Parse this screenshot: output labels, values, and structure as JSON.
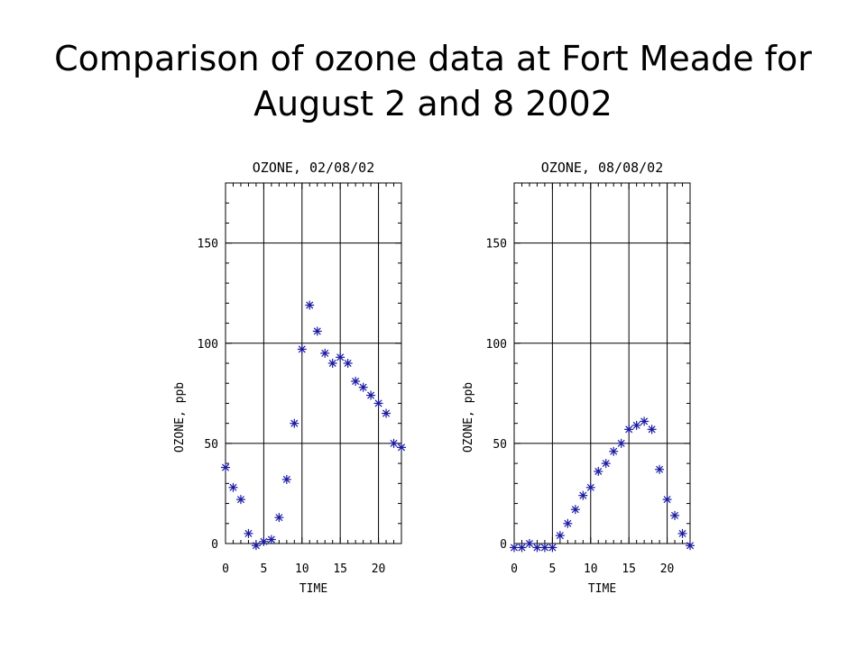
{
  "slide": {
    "title_line1": "Comparison of ozone data at Fort Meade for",
    "title_line2": "August 2 and 8 2002"
  },
  "colors": {
    "marker": "#1a1aa0",
    "axis": "#000000",
    "background": "#ffffff"
  },
  "chart_data": [
    {
      "type": "scatter",
      "title": "OZONE, 02/08/02",
      "xlabel": "TIME",
      "ylabel": "OZONE, ppb",
      "xlim": [
        0,
        23
      ],
      "ylim": [
        0,
        180
      ],
      "xticks": [
        0,
        5,
        10,
        15,
        20
      ],
      "yticks": [
        0,
        50,
        100,
        150
      ],
      "grid": true,
      "marker": "asterisk",
      "x": [
        0,
        1,
        2,
        3,
        4,
        5,
        6,
        7,
        8,
        9,
        10,
        11,
        12,
        13,
        14,
        15,
        16,
        17,
        18,
        19,
        20,
        21,
        22,
        23
      ],
      "y": [
        38,
        28,
        22,
        5,
        -1,
        1,
        2,
        13,
        32,
        60,
        97,
        119,
        106,
        95,
        90,
        93,
        90,
        81,
        78,
        74,
        70,
        65,
        50,
        48
      ]
    },
    {
      "type": "scatter",
      "title": "OZONE, 08/08/02",
      "xlabel": "TIME",
      "ylabel": "OZONE, ppb",
      "xlim": [
        0,
        23
      ],
      "ylim": [
        0,
        180
      ],
      "xticks": [
        0,
        5,
        10,
        15,
        20
      ],
      "yticks": [
        0,
        50,
        100,
        150
      ],
      "grid": true,
      "marker": "asterisk",
      "x": [
        0,
        1,
        2,
        3,
        4,
        5,
        6,
        7,
        8,
        9,
        10,
        11,
        12,
        13,
        14,
        15,
        16,
        17,
        18,
        19,
        20,
        21,
        22,
        23
      ],
      "y": [
        -2,
        -2,
        0,
        -2,
        -2,
        -2,
        4,
        10,
        17,
        24,
        28,
        36,
        40,
        46,
        50,
        57,
        59,
        61,
        57,
        37,
        22,
        14,
        5,
        -1
      ]
    }
  ]
}
